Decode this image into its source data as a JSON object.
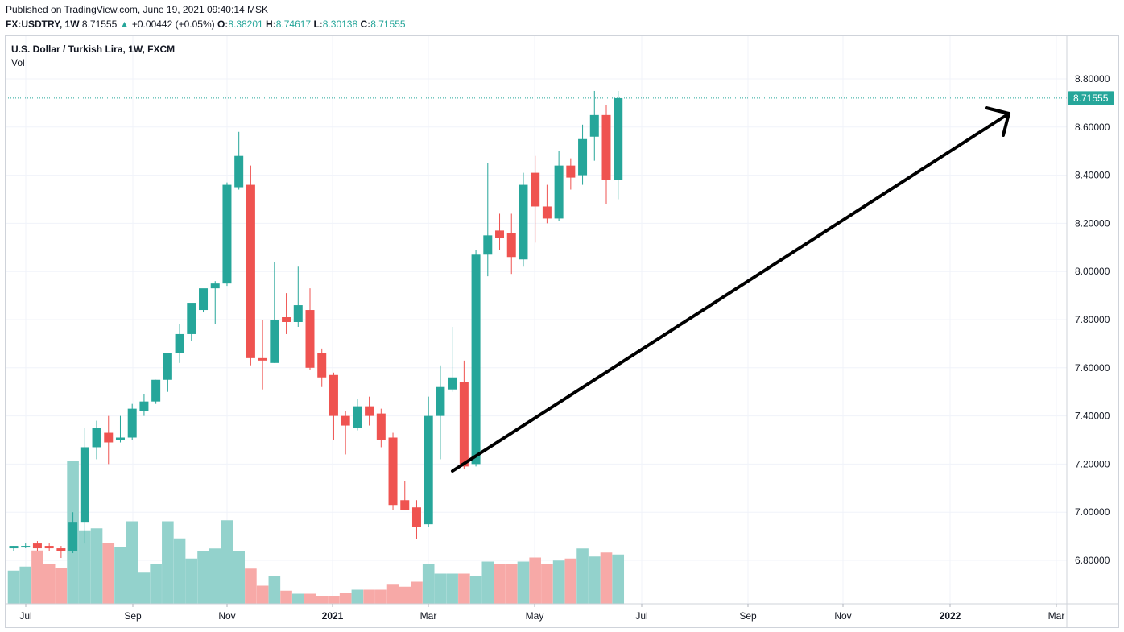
{
  "header": {
    "published": "Published on TradingView.com, June 19, 2021 09:40:14 MSK",
    "symbol": "FX:USDTRY, 1W",
    "last": "8.71555",
    "change": "+0.00442 (+0.05%)",
    "o_label": "O:",
    "o_value": "8.38201",
    "h_label": "H:",
    "h_value": "8.74617",
    "l_label": "L:",
    "l_value": "8.30138",
    "c_label": "C:",
    "c_value": "8.71555"
  },
  "colors": {
    "up": "#26a69a",
    "down": "#ef5350",
    "up_vol": "#93d2cc",
    "down_vol": "#f7a9a7",
    "grid": "#f0f3fa",
    "arrow": "#000000"
  },
  "chart_data": {
    "type": "candlestick",
    "title": "U.S. Dollar / Turkish Lira, 1W, FXCM",
    "volume_label": "Vol",
    "y_ticks": [
      "6.80000",
      "7.00000",
      "7.20000",
      "7.40000",
      "7.60000",
      "7.80000",
      "8.00000",
      "8.20000",
      "8.40000",
      "8.60000",
      "8.80000"
    ],
    "ylim": [
      6.7,
      8.93
    ],
    "x_ticks": [
      "Jul",
      "Sep",
      "Nov",
      "2021",
      "Mar",
      "May",
      "Jul",
      "Sep",
      "Nov",
      "2022",
      "Mar"
    ],
    "last_price_label": "8.71555",
    "candles": [
      {
        "o": 6.85,
        "h": 6.86,
        "l": 6.84,
        "c": 6.86,
        "v": 0.33
      },
      {
        "o": 6.86,
        "h": 6.87,
        "l": 6.85,
        "c": 6.86,
        "v": 0.37
      },
      {
        "o": 6.87,
        "h": 6.88,
        "l": 6.84,
        "c": 6.85,
        "v": 0.53
      },
      {
        "o": 6.86,
        "h": 6.87,
        "l": 6.84,
        "c": 6.85,
        "v": 0.4
      },
      {
        "o": 6.85,
        "h": 6.86,
        "l": 6.81,
        "c": 6.84,
        "v": 0.36
      },
      {
        "o": 6.84,
        "h": 7.0,
        "l": 6.83,
        "c": 6.96,
        "v": 1.42
      },
      {
        "o": 6.96,
        "h": 7.35,
        "l": 6.87,
        "c": 7.27,
        "v": 0.73
      },
      {
        "o": 7.27,
        "h": 7.38,
        "l": 7.22,
        "c": 7.35,
        "v": 0.75
      },
      {
        "o": 7.33,
        "h": 7.4,
        "l": 7.2,
        "c": 7.29,
        "v": 0.6
      },
      {
        "o": 7.3,
        "h": 7.4,
        "l": 7.29,
        "c": 7.31,
        "v": 0.56
      },
      {
        "o": 7.31,
        "h": 7.45,
        "l": 7.3,
        "c": 7.43,
        "v": 0.82
      },
      {
        "o": 7.42,
        "h": 7.49,
        "l": 7.4,
        "c": 7.46,
        "v": 0.31
      },
      {
        "o": 7.46,
        "h": 7.55,
        "l": 7.45,
        "c": 7.55,
        "v": 0.4
      },
      {
        "o": 7.55,
        "h": 7.66,
        "l": 7.5,
        "c": 7.66,
        "v": 0.82
      },
      {
        "o": 7.66,
        "h": 7.78,
        "l": 7.62,
        "c": 7.74,
        "v": 0.65
      },
      {
        "o": 7.74,
        "h": 7.86,
        "l": 7.71,
        "c": 7.87,
        "v": 0.45
      },
      {
        "o": 7.84,
        "h": 7.91,
        "l": 7.83,
        "c": 7.93,
        "v": 0.52
      },
      {
        "o": 7.93,
        "h": 7.96,
        "l": 7.78,
        "c": 7.95,
        "v": 0.55
      },
      {
        "o": 7.95,
        "h": 8.37,
        "l": 7.94,
        "c": 8.36,
        "v": 0.83
      },
      {
        "o": 8.35,
        "h": 8.58,
        "l": 8.34,
        "c": 8.48,
        "v": 0.52
      },
      {
        "o": 8.36,
        "h": 8.44,
        "l": 7.61,
        "c": 7.64,
        "v": 0.35
      },
      {
        "o": 7.64,
        "h": 7.8,
        "l": 7.51,
        "c": 7.63,
        "v": 0.18
      },
      {
        "o": 7.62,
        "h": 8.04,
        "l": 7.62,
        "c": 7.8,
        "v": 0.28
      },
      {
        "o": 7.81,
        "h": 7.91,
        "l": 7.74,
        "c": 7.79,
        "v": 0.13
      },
      {
        "o": 7.79,
        "h": 8.02,
        "l": 7.77,
        "c": 7.86,
        "v": 0.1
      },
      {
        "o": 7.84,
        "h": 7.93,
        "l": 7.59,
        "c": 7.6,
        "v": 0.1
      },
      {
        "o": 7.66,
        "h": 7.68,
        "l": 7.52,
        "c": 7.56,
        "v": 0.08
      },
      {
        "o": 7.57,
        "h": 7.58,
        "l": 7.3,
        "c": 7.4,
        "v": 0.08
      },
      {
        "o": 7.4,
        "h": 7.42,
        "l": 7.24,
        "c": 7.36,
        "v": 0.11
      },
      {
        "o": 7.35,
        "h": 7.47,
        "l": 7.34,
        "c": 7.44,
        "v": 0.14
      },
      {
        "o": 7.44,
        "h": 7.48,
        "l": 7.36,
        "c": 7.4,
        "v": 0.14
      },
      {
        "o": 7.41,
        "h": 7.43,
        "l": 7.27,
        "c": 7.3,
        "v": 0.14
      },
      {
        "o": 7.31,
        "h": 7.33,
        "l": 7.01,
        "c": 7.03,
        "v": 0.19
      },
      {
        "o": 7.05,
        "h": 7.13,
        "l": 7.01,
        "c": 7.01,
        "v": 0.17
      },
      {
        "o": 7.02,
        "h": 7.05,
        "l": 6.89,
        "c": 6.94,
        "v": 0.22
      },
      {
        "o": 6.95,
        "h": 7.48,
        "l": 6.94,
        "c": 7.4,
        "v": 0.4
      },
      {
        "o": 7.4,
        "h": 7.61,
        "l": 7.22,
        "c": 7.52,
        "v": 0.3
      },
      {
        "o": 7.51,
        "h": 7.77,
        "l": 7.5,
        "c": 7.56,
        "v": 0.3
      },
      {
        "o": 7.54,
        "h": 7.63,
        "l": 7.18,
        "c": 7.19,
        "v": 0.3
      },
      {
        "o": 7.2,
        "h": 8.09,
        "l": 7.19,
        "c": 8.07,
        "v": 0.28
      },
      {
        "o": 8.07,
        "h": 8.45,
        "l": 7.98,
        "c": 8.15,
        "v": 0.42
      },
      {
        "o": 8.17,
        "h": 8.24,
        "l": 8.09,
        "c": 8.14,
        "v": 0.4
      },
      {
        "o": 8.16,
        "h": 8.24,
        "l": 7.99,
        "c": 8.06,
        "v": 0.4
      },
      {
        "o": 8.05,
        "h": 8.41,
        "l": 8.02,
        "c": 8.36,
        "v": 0.42
      },
      {
        "o": 8.41,
        "h": 8.48,
        "l": 8.12,
        "c": 8.27,
        "v": 0.46
      },
      {
        "o": 8.27,
        "h": 8.36,
        "l": 8.2,
        "c": 8.22,
        "v": 0.4
      },
      {
        "o": 8.22,
        "h": 8.5,
        "l": 8.21,
        "c": 8.44,
        "v": 0.43
      },
      {
        "o": 8.44,
        "h": 8.47,
        "l": 8.34,
        "c": 8.39,
        "v": 0.45
      },
      {
        "o": 8.4,
        "h": 8.61,
        "l": 8.36,
        "c": 8.55,
        "v": 0.55
      },
      {
        "o": 8.56,
        "h": 8.75,
        "l": 8.46,
        "c": 8.65,
        "v": 0.47
      },
      {
        "o": 8.65,
        "h": 8.69,
        "l": 8.28,
        "c": 8.38,
        "v": 0.51
      },
      {
        "o": 8.38,
        "h": 8.75,
        "l": 8.3,
        "c": 8.72,
        "v": 0.49
      }
    ]
  }
}
